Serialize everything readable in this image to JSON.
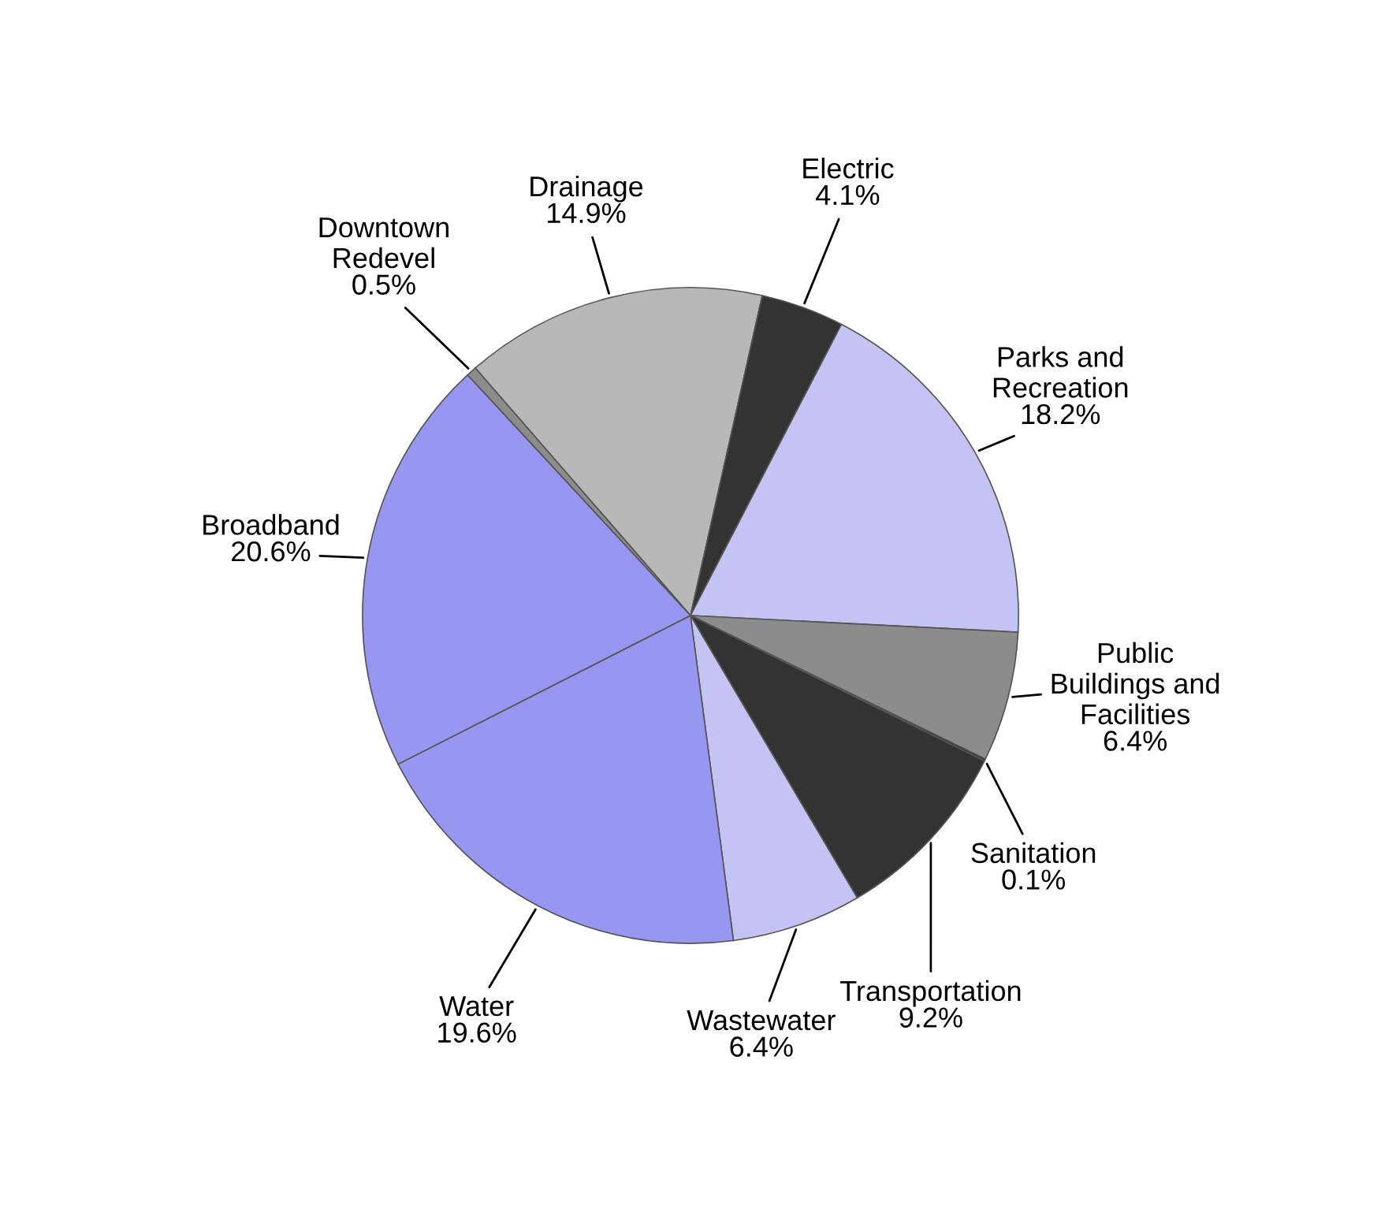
{
  "chart_data": {
    "type": "pie",
    "categories": [
      "Drainage",
      "Electric",
      "Parks and\nRecreation",
      "Public\nBuildings and\nFacilities",
      "Sanitation",
      "Transportation",
      "Wastewater",
      "Water",
      "Broadband",
      "Downtown\nRedevel"
    ],
    "values": [
      14.9,
      4.1,
      18.2,
      6.4,
      0.1,
      9.2,
      6.4,
      19.6,
      20.6,
      0.5
    ],
    "colors": [
      "#b8b8b8",
      "#333333",
      "#c4c4f4",
      "#8c8c8c",
      "#1a1a1a",
      "#333333",
      "#c4c4f4",
      "#9797f2",
      "#9797f2",
      "#8c8c8c"
    ],
    "value_labels": [
      "14.9%",
      "4.1%",
      "18.2%",
      "6.4%",
      "0.1%",
      "9.2%",
      "6.4%",
      "19.6%",
      "20.6%",
      "0.5%"
    ]
  }
}
